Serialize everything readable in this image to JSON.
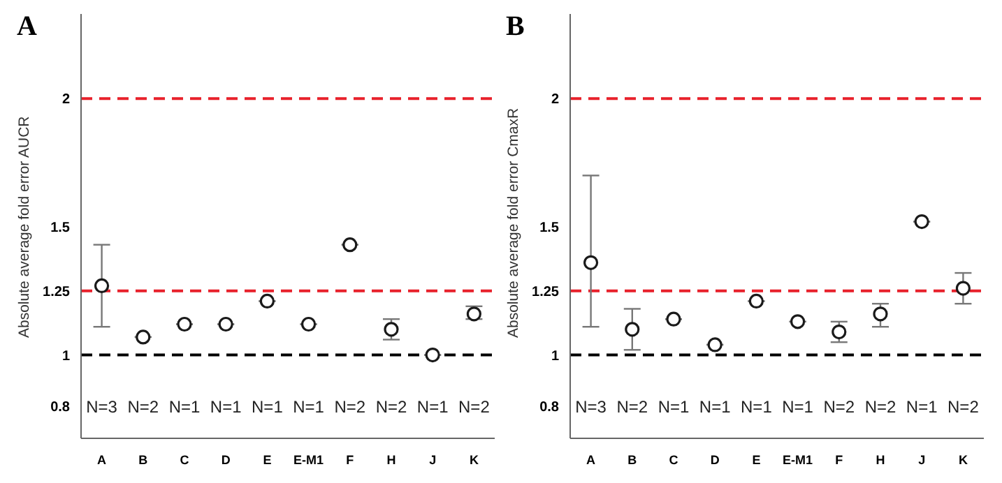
{
  "chart_data": [
    {
      "type": "scatter",
      "title": "A",
      "ylabel": "Absolute average fold error AUCR",
      "categories": [
        "A",
        "B",
        "C",
        "D",
        "E",
        "E-M1",
        "F",
        "H",
        "J",
        "K"
      ],
      "series": [
        {
          "color": "#1a1a1a",
          "values": [
            1.27,
            1.07,
            1.12,
            1.12,
            1.21,
            1.12,
            1.43,
            1.1,
            1.0,
            1.16
          ],
          "errors": [
            [
              1.11,
              1.43
            ],
            null,
            null,
            null,
            null,
            null,
            null,
            [
              1.06,
              1.14
            ],
            null,
            [
              1.14,
              1.19
            ]
          ]
        }
      ],
      "ylim": [
        0.675,
        2.33
      ],
      "yticks": [
        0.8,
        1,
        1.25,
        1.5,
        2
      ],
      "grid": false,
      "legend": false,
      "marker": "circle",
      "ref_lines": [
        {
          "axis": "y",
          "value": 1,
          "color": "#000000",
          "line_style": "dashed"
        },
        {
          "axis": "y",
          "value": 1.25,
          "color": "#e8212b",
          "line_style": "dashed"
        },
        {
          "axis": "y",
          "value": 2,
          "color": "#e8212b",
          "line_style": "dashed"
        }
      ],
      "annotations": [
        "N=3",
        "N=2",
        "N=1",
        "N=1",
        "N=1",
        "N=1",
        "N=2",
        "N=2",
        "N=1",
        "N=2"
      ]
    },
    {
      "type": "scatter",
      "title": "B",
      "ylabel": "Absolute average fold error CmaxR",
      "categories": [
        "A",
        "B",
        "C",
        "D",
        "E",
        "E-M1",
        "F",
        "H",
        "J",
        "K"
      ],
      "series": [
        {
          "color": "#1a1a1a",
          "values": [
            1.36,
            1.1,
            1.14,
            1.04,
            1.21,
            1.13,
            1.09,
            1.16,
            1.52,
            1.26
          ],
          "errors": [
            [
              1.11,
              1.7
            ],
            [
              1.02,
              1.18
            ],
            null,
            null,
            null,
            null,
            [
              1.05,
              1.13
            ],
            [
              1.11,
              1.2
            ],
            null,
            [
              1.2,
              1.32
            ]
          ]
        }
      ],
      "ylim": [
        0.675,
        2.33
      ],
      "yticks": [
        0.8,
        1,
        1.25,
        1.5,
        2
      ],
      "grid": false,
      "legend": false,
      "marker": "circle",
      "ref_lines": [
        {
          "axis": "y",
          "value": 1,
          "color": "#000000",
          "line_style": "dashed"
        },
        {
          "axis": "y",
          "value": 1.25,
          "color": "#e8212b",
          "line_style": "dashed"
        },
        {
          "axis": "y",
          "value": 2,
          "color": "#e8212b",
          "line_style": "dashed"
        }
      ],
      "annotations": [
        "N=3",
        "N=2",
        "N=1",
        "N=1",
        "N=1",
        "N=1",
        "N=2",
        "N=2",
        "N=1",
        "N=2"
      ]
    }
  ]
}
